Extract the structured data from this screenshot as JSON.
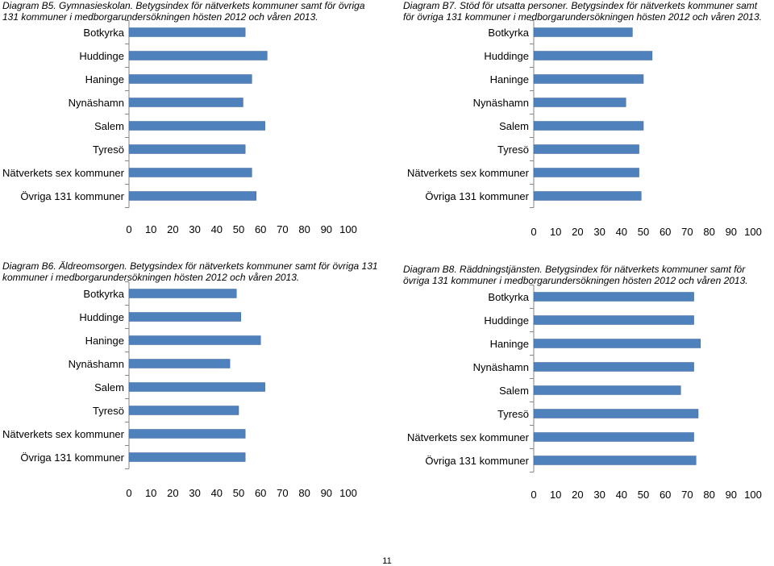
{
  "page_number": "11",
  "chart_data": [
    {
      "type": "bar",
      "orientation": "horizontal",
      "caption": "Diagram B5. Gymnasieskolan. Betygsindex för nätverkets kommuner samt för övriga 131 kommuner i medborgarundersökningen hösten 2012 och våren 2013.",
      "categories": [
        "Botkyrka",
        "Huddinge",
        "Haninge",
        "Nynäshamn",
        "Salem",
        "Tyresö",
        "Nätverkets sex kommuner",
        "Övriga 131 kommuner"
      ],
      "values": [
        53,
        63,
        56,
        52,
        62,
        53,
        56,
        58
      ],
      "xlim": [
        0,
        100
      ],
      "ticks": [
        "0",
        "10",
        "20",
        "30",
        "40",
        "50",
        "60",
        "70",
        "80",
        "90",
        "100"
      ],
      "bar_color": "#4f81bd"
    },
    {
      "type": "bar",
      "orientation": "horizontal",
      "caption": "Diagram B7. Stöd för utsatta personer. Betygsindex för nätverkets kommuner samt för övriga 131 kommuner i medborgarundersökningen hösten 2012 och våren 2013.",
      "categories": [
        "Botkyrka",
        "Huddinge",
        "Haninge",
        "Nynäshamn",
        "Salem",
        "Tyresö",
        "Nätverkets sex kommuner",
        "Övriga 131 kommuner"
      ],
      "values": [
        45,
        54,
        50,
        42,
        50,
        48,
        48,
        49
      ],
      "xlim": [
        0,
        100
      ],
      "ticks": [
        "0",
        "10",
        "20",
        "30",
        "40",
        "50",
        "60",
        "70",
        "80",
        "90",
        "100"
      ],
      "bar_color": "#4f81bd"
    },
    {
      "type": "bar",
      "orientation": "horizontal",
      "caption": "Diagram B6. Äldreomsorgen. Betygsindex för nätverkets kommuner samt för övriga 131 kommuner i medborgarundersökningen hösten 2012 och våren 2013.",
      "categories": [
        "Botkyrka",
        "Huddinge",
        "Haninge",
        "Nynäshamn",
        "Salem",
        "Tyresö",
        "Nätverkets sex kommuner",
        "Övriga 131 kommuner"
      ],
      "values": [
        49,
        51,
        60,
        46,
        62,
        50,
        53,
        53
      ],
      "xlim": [
        0,
        100
      ],
      "ticks": [
        "0",
        "10",
        "20",
        "30",
        "40",
        "50",
        "60",
        "70",
        "80",
        "90",
        "100"
      ],
      "bar_color": "#4f81bd"
    },
    {
      "type": "bar",
      "orientation": "horizontal",
      "caption": "Diagram B8. Räddningstjänsten. Betygsindex för nätverkets kommuner samt för övriga 131 kommuner i medborgarundersökningen hösten 2012 och våren 2013.",
      "categories": [
        "Botkyrka",
        "Huddinge",
        "Haninge",
        "Nynäshamn",
        "Salem",
        "Tyresö",
        "Nätverkets sex kommuner",
        "Övriga 131 kommuner"
      ],
      "values": [
        73,
        73,
        76,
        73,
        67,
        75,
        73,
        74
      ],
      "xlim": [
        0,
        100
      ],
      "ticks": [
        "0",
        "10",
        "20",
        "30",
        "40",
        "50",
        "60",
        "70",
        "80",
        "90",
        "100"
      ],
      "bar_color": "#4f81bd"
    }
  ]
}
